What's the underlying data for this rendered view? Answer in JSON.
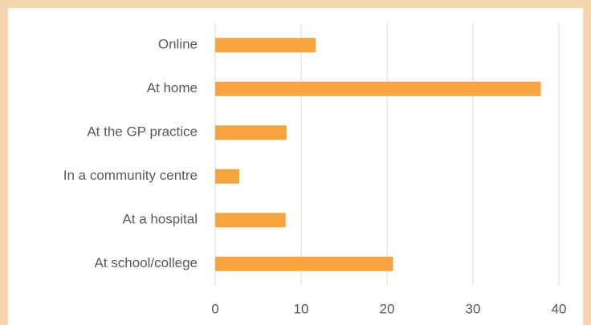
{
  "chart_data": {
    "type": "bar",
    "orientation": "horizontal",
    "categories": [
      "Online",
      "At home",
      "At the GP practice",
      "In a community centre",
      "At a hospital",
      "At school/college"
    ],
    "values": [
      11.7,
      37.9,
      8.3,
      2.8,
      8.2,
      20.7
    ],
    "color": "#f7a440",
    "xlim": [
      0,
      40
    ],
    "xticks": [
      0,
      10,
      20,
      30,
      40
    ],
    "grid": true
  }
}
